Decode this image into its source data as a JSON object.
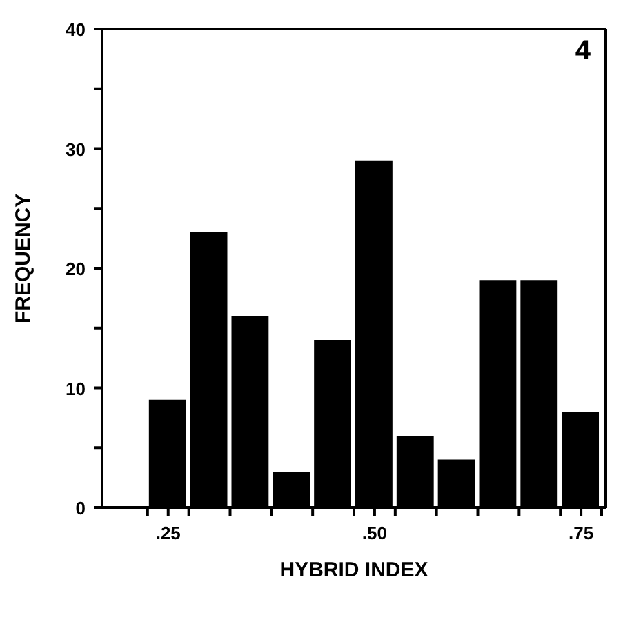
{
  "chart_data": {
    "type": "histogram",
    "xlabel": "HYBRID INDEX",
    "ylabel": "FREQUENCY",
    "annotations": [
      "4"
    ],
    "bins": [
      0.225,
      0.275,
      0.325,
      0.375,
      0.425,
      0.475,
      0.525,
      0.575,
      0.625,
      0.675,
      0.725,
      0.775
    ],
    "values": [
      9,
      23,
      16,
      3,
      14,
      29,
      6,
      4,
      19,
      19,
      8
    ],
    "color": "#000000",
    "xlim": [
      0.17,
      0.78
    ],
    "xticks": [
      {
        "value": 0.225,
        "label": null
      },
      {
        "value": 0.25,
        "label": ".25"
      },
      {
        "value": 0.275,
        "label": null
      },
      {
        "value": 0.325,
        "label": null
      },
      {
        "value": 0.375,
        "label": null
      },
      {
        "value": 0.425,
        "label": null
      },
      {
        "value": 0.475,
        "label": null
      },
      {
        "value": 0.5,
        "label": ".50"
      },
      {
        "value": 0.525,
        "label": null
      },
      {
        "value": 0.575,
        "label": null
      },
      {
        "value": 0.625,
        "label": null
      },
      {
        "value": 0.675,
        "label": null
      },
      {
        "value": 0.725,
        "label": null
      },
      {
        "value": 0.75,
        "label": ".75"
      },
      {
        "value": 0.775,
        "label": null
      }
    ],
    "ylim": [
      0,
      40
    ],
    "yticks": [
      0,
      {
        "value": 5,
        "label": null
      },
      10,
      {
        "value": 15,
        "label": null
      },
      20,
      {
        "value": 25,
        "label": null
      },
      30,
      {
        "value": 35,
        "label": null
      },
      40
    ],
    "grid": false,
    "legend": false
  }
}
